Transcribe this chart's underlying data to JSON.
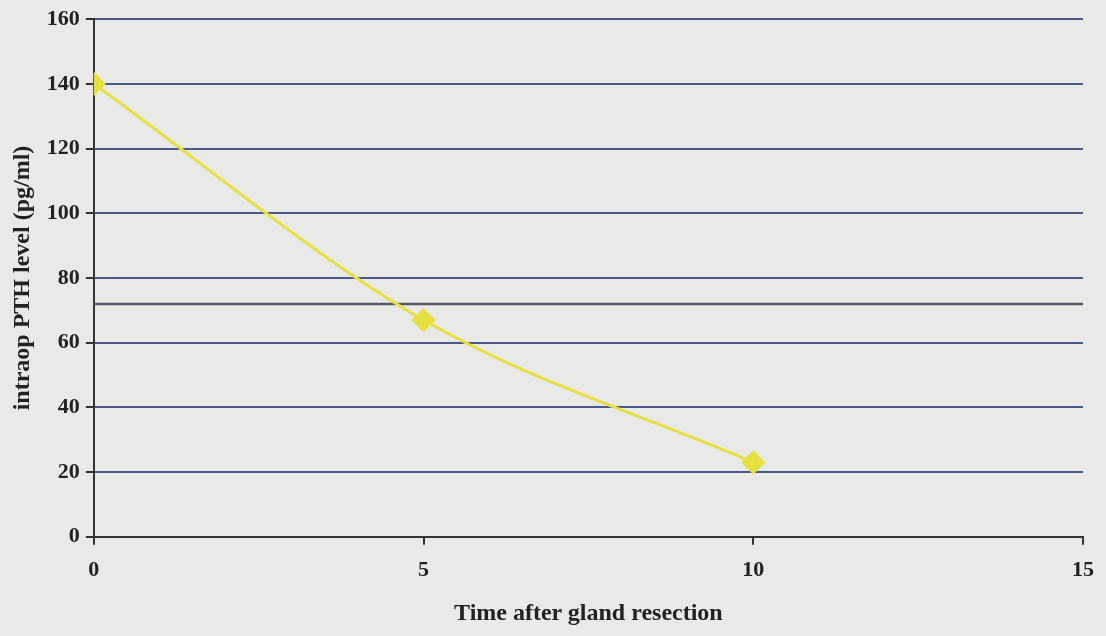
{
  "chart_data": {
    "type": "line",
    "xlabel": "Time after gland resection",
    "ylabel": "intraop PTH level (pg/ml)",
    "x": [
      0,
      5,
      10
    ],
    "series": [
      {
        "color": "#e6e040",
        "values": [
          140,
          67,
          23
        ]
      }
    ],
    "xlim": [
      0,
      15
    ],
    "xticks": [
      0,
      5,
      10,
      15
    ],
    "ylim": [
      0,
      160
    ],
    "yticks": [
      0,
      20,
      40,
      60,
      80,
      100,
      120,
      140,
      160
    ],
    "grid": "y",
    "legend": false,
    "marker": "diamond",
    "line_style": "solid",
    "ref_lines": [
      {
        "axis": "y",
        "value": 72,
        "color": "#55585e"
      }
    ]
  }
}
